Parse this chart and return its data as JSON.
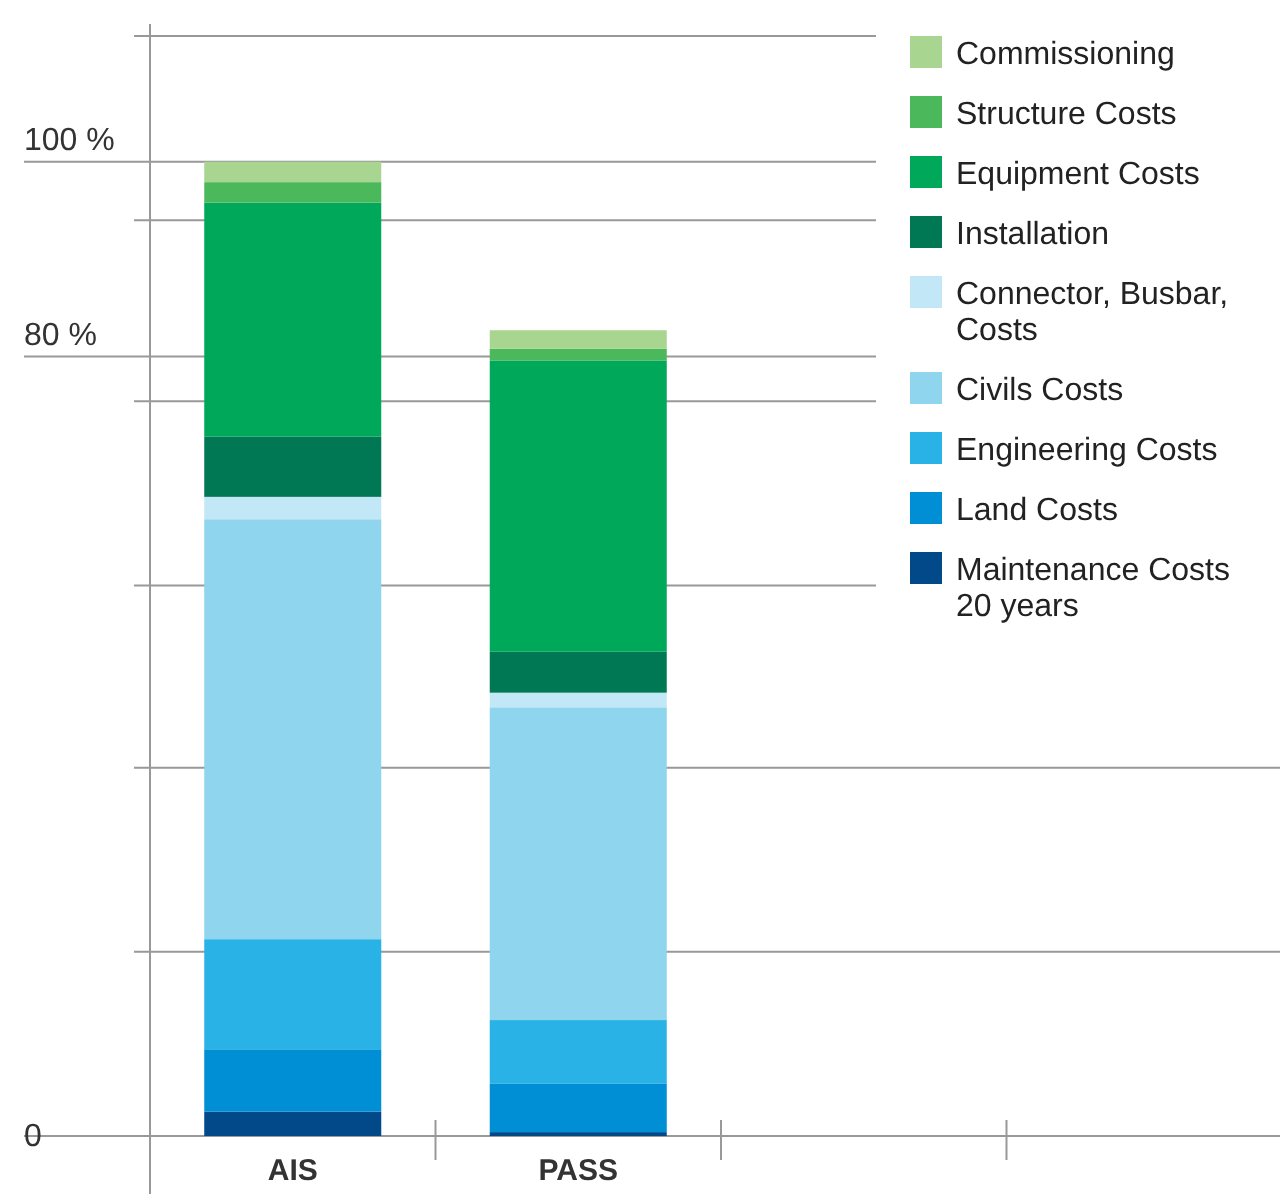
{
  "chart_data": {
    "type": "bar",
    "stacked": true,
    "categories": [
      "AIS",
      "PASS",
      null,
      null
    ],
    "series": [
      {
        "name": "Maintenance Costs 20 years",
        "color": "#02498a",
        "values": [
          2.5,
          0.4,
          null,
          null
        ]
      },
      {
        "name": "Land Costs",
        "color": "#008ed4",
        "values": [
          6.4,
          5.0,
          null,
          null
        ]
      },
      {
        "name": "Engineering Costs",
        "color": "#29b2e6",
        "values": [
          11.3,
          6.5,
          null,
          null
        ]
      },
      {
        "name": "Civils Costs",
        "color": "#8fd5ee",
        "values": [
          43.1,
          32.1,
          null,
          null
        ]
      },
      {
        "name": "Connector, Busbar, Costs",
        "color": "#c2e8f8",
        "values": [
          2.3,
          1.5,
          null,
          null
        ]
      },
      {
        "name": "Installation",
        "color": "#007853",
        "values": [
          6.2,
          4.2,
          null,
          null
        ]
      },
      {
        "name": "Equipment Costs",
        "color": "#00a859",
        "values": [
          24.0,
          29.9,
          null,
          null
        ]
      },
      {
        "name": "Structure Costs",
        "color": "#4cb85c",
        "values": [
          2.1,
          1.2,
          null,
          null
        ]
      },
      {
        "name": "Commissioning",
        "color": "#a8d58f",
        "values": [
          2.1,
          1.9,
          null,
          null
        ]
      }
    ],
    "ylim": [
      0,
      112.9
    ],
    "yticks": [
      0,
      {
        "value": 18.9,
        "label": null
      },
      {
        "value": 37.8,
        "label": null
      },
      {
        "value": 56.5,
        "label": null
      },
      {
        "value": 75.4,
        "label": null
      },
      {
        "value": 80,
        "label": "80 %"
      },
      {
        "value": 94.0,
        "label": null
      },
      {
        "value": 100,
        "label": "100 %"
      },
      {
        "value": 112.9,
        "label": null
      }
    ],
    "grid": "y",
    "legend": "right"
  }
}
